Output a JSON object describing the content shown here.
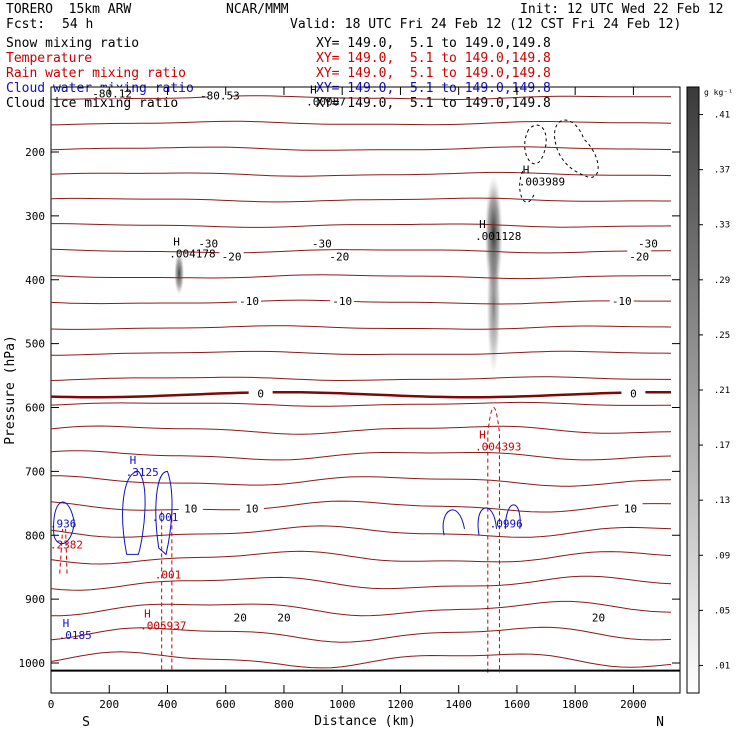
{
  "header": {
    "model": "TORERO  15km ARW",
    "org": "NCAR/MMM",
    "init": "Init: 12 UTC Wed 22 Feb 12",
    "fcst_label": "Fcst:",
    "fcst_value": "54 h",
    "valid": "Valid: 18 UTC Fri 24 Feb 12 (12 CST Fri 24 Feb 12)",
    "fields": [
      {
        "name": "Snow mixing ratio",
        "xy": "XY= 149.0,  5.1 to 149.0,149.8",
        "color": "#000000"
      },
      {
        "name": "Temperature",
        "xy": "XY= 149.0,  5.1 to 149.0,149.8",
        "color": "#cc0000"
      },
      {
        "name": "Rain water mixing ratio",
        "xy": "XY= 149.0,  5.1 to 149.0,149.8",
        "color": "#cc0000"
      },
      {
        "name": "Cloud water mixing ratio",
        "xy": "XY= 149.0,  5.1 to 149.0,149.8",
        "color": "#1010c0"
      },
      {
        "name": "Cloud ice mixing ratio",
        "xy": "XY= 149.0,  5.1 to 149.0,149.8",
        "color": "#000000"
      }
    ]
  },
  "chart_data": {
    "type": "contour",
    "xlabel": "Distance (km)",
    "ylabel": "Pressure (hPa)",
    "xlim": [
      0,
      2160
    ],
    "ylim": [
      1050,
      100
    ],
    "x_ticks": [
      0,
      200,
      400,
      600,
      800,
      1000,
      1200,
      1400,
      1600,
      1800,
      2000
    ],
    "y_ticks": [
      200,
      300,
      400,
      500,
      600,
      700,
      800,
      900,
      1000
    ],
    "end_labels": {
      "left": "S",
      "right": "N"
    },
    "colorbar": {
      "unit": "g kg⁻¹",
      "ticks": [
        ".01",
        ".05",
        ".09",
        ".13",
        ".17",
        ".21",
        ".25",
        ".29",
        ".33",
        ".37",
        ".41"
      ]
    },
    "temperature_contours": [
      {
        "level": "-80.53",
        "type": "value",
        "p": 113,
        "x": 580
      },
      {
        "level": "-80.12",
        "type": "value",
        "p": 110,
        "x": 210
      },
      {
        "level": "-30",
        "p": 345,
        "labels_x": [
          540,
          930,
          2050
        ]
      },
      {
        "level": "-20",
        "p": 365,
        "labels_x": [
          620,
          990,
          2020
        ]
      },
      {
        "level": "-10",
        "p": 435,
        "labels_x": [
          680,
          1000,
          1960
        ]
      },
      {
        "level": "0",
        "p": 580,
        "labels_x": [
          720,
          2000
        ],
        "thick": true
      },
      {
        "level": "10",
        "p": 760,
        "labels_x": [
          480,
          690,
          1990
        ]
      },
      {
        "level": "20",
        "p": 930,
        "labels_x": [
          650,
          800,
          1880
        ]
      }
    ],
    "annotations": [
      {
        "marker": "H",
        "value": ".00087",
        "color": "#000000",
        "x": 890,
        "p": 115
      },
      {
        "marker": "H",
        "value": ".004178",
        "color": "#000000",
        "x": 420,
        "p": 353
      },
      {
        "marker": "H",
        "value": ".001128",
        "color": "#000000",
        "x": 1470,
        "p": 325
      },
      {
        "marker": "H",
        "value": ".003989",
        "color": "#000000",
        "x": 1620,
        "p": 240
      },
      {
        "marker": "H",
        "value": ".004393",
        "color": "#cc0000",
        "x": 1470,
        "p": 655
      },
      {
        "marker": "H",
        "value": ".3125",
        "color": "#1010c0",
        "x": 270,
        "p": 695
      },
      {
        "marker": "",
        "value": ".001",
        "color": "#1010c0",
        "x": 360,
        "p": 765
      },
      {
        "marker": "",
        "value": ".001",
        "color": "#cc0000",
        "x": 370,
        "p": 855
      },
      {
        "marker": "",
        "value": ".0996",
        "color": "#1010c0",
        "x": 1520,
        "p": 775
      },
      {
        "marker": "",
        "value": ".936",
        "color": "#1010c0",
        "x": 10,
        "p": 775
      },
      {
        "marker": "",
        "value": ".2382",
        "color": "#cc0000",
        "x": 10,
        "p": 808
      },
      {
        "marker": "H",
        "value": ".005937",
        "color": "#cc0000",
        "x": 320,
        "p": 935
      },
      {
        "marker": "H",
        "value": ".0185",
        "color": "#1010c0",
        "x": 40,
        "p": 950
      }
    ]
  }
}
